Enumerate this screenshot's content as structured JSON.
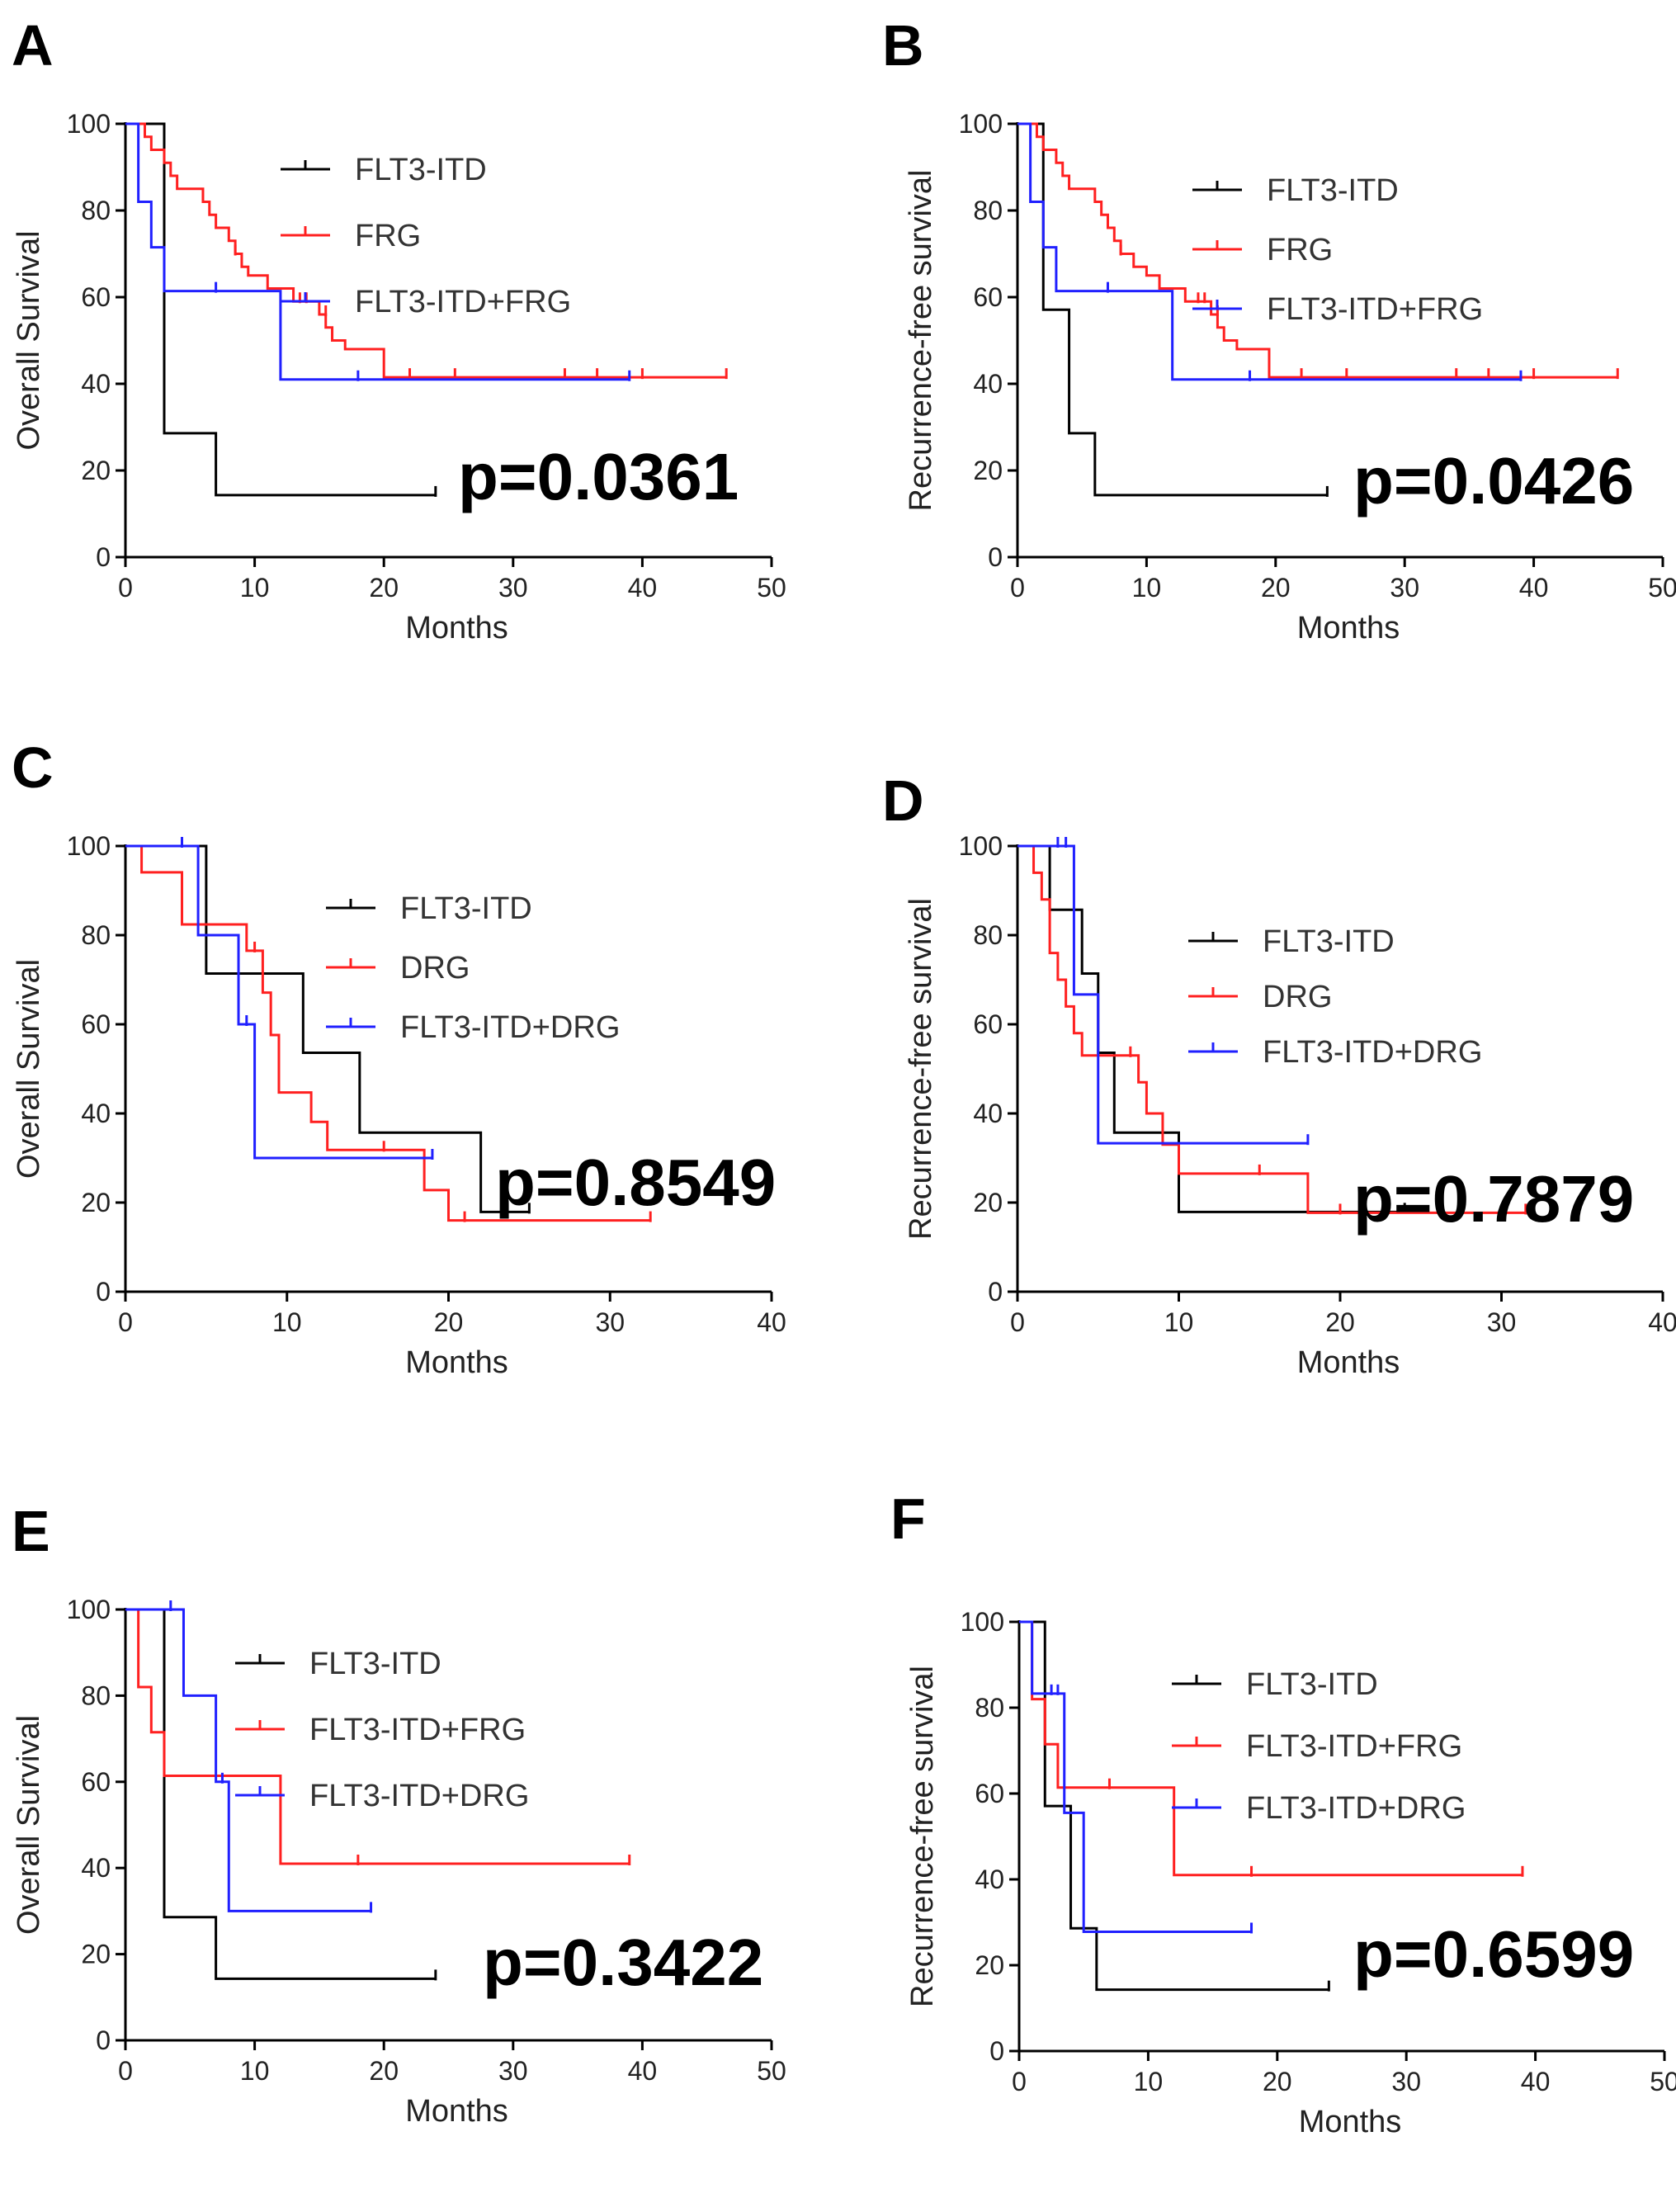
{
  "colors": {
    "black": "#000000",
    "red": "#ff2020",
    "blue": "#2020ff",
    "lightblue": "#8080ff"
  },
  "chart_data": [
    {
      "type": "line",
      "label": "A",
      "ylabel": "Overall Survival",
      "xlabel": "Months",
      "xlim": [
        0,
        50
      ],
      "ylim": [
        0,
        100
      ],
      "xticks": [
        0,
        10,
        20,
        30,
        40,
        50
      ],
      "yticks": [
        0,
        20,
        40,
        60,
        80,
        100
      ],
      "pvalue": "p=0.0361",
      "series": [
        {
          "name": "FLT3-ITD",
          "color": "#000000",
          "steps": [
            [
              0,
              100
            ],
            [
              3,
              28.6
            ],
            [
              7,
              14.3
            ],
            [
              24,
              14.3
            ]
          ],
          "censors": [
            [
              24,
              14.3
            ]
          ]
        },
        {
          "name": "FRG",
          "color": "#ff2020",
          "steps": [
            [
              0,
              100
            ],
            [
              1.5,
              97
            ],
            [
              2,
              94
            ],
            [
              3,
              91
            ],
            [
              3.5,
              88
            ],
            [
              4,
              85
            ],
            [
              6,
              82
            ],
            [
              6.5,
              79
            ],
            [
              7,
              76
            ],
            [
              8,
              73
            ],
            [
              8.5,
              70
            ],
            [
              9,
              67
            ],
            [
              9.5,
              65
            ],
            [
              11,
              62
            ],
            [
              13,
              59
            ],
            [
              15,
              56
            ],
            [
              15.5,
              53
            ],
            [
              16,
              50
            ],
            [
              17,
              48
            ],
            [
              20,
              41.5
            ],
            [
              46.5,
              41.5
            ]
          ],
          "censors": [
            [
              8.5,
              70
            ],
            [
              13.5,
              59
            ],
            [
              14,
              59
            ],
            [
              15.5,
              56
            ],
            [
              22,
              41.5
            ],
            [
              25.5,
              41.5
            ],
            [
              34,
              41.5
            ],
            [
              36.5,
              41.5
            ],
            [
              40,
              41.5
            ],
            [
              46.5,
              41.5
            ]
          ]
        },
        {
          "name": "FLT3-ITD+FRG",
          "color": "#2020ff",
          "steps": [
            [
              0,
              100
            ],
            [
              1,
              82
            ],
            [
              2,
              71.5
            ],
            [
              3,
              61.4
            ],
            [
              12,
              41
            ],
            [
              39,
              41
            ]
          ],
          "censors": [
            [
              7,
              61.4
            ],
            [
              18,
              41
            ],
            [
              39,
              41
            ]
          ]
        }
      ]
    },
    {
      "type": "line",
      "label": "B",
      "ylabel": "Recurrence-free survival",
      "xlabel": "Months",
      "xlim": [
        0,
        50
      ],
      "ylim": [
        0,
        100
      ],
      "xticks": [
        0,
        10,
        20,
        30,
        40,
        50
      ],
      "yticks": [
        0,
        20,
        40,
        60,
        80,
        100
      ],
      "pvalue": "p=0.0426",
      "series": [
        {
          "name": "FLT3-ITD",
          "color": "#000000",
          "steps": [
            [
              0,
              100
            ],
            [
              2,
              57.1
            ],
            [
              4,
              28.6
            ],
            [
              6,
              14.3
            ],
            [
              24,
              14.3
            ]
          ],
          "censors": [
            [
              24,
              14.3
            ]
          ]
        },
        {
          "name": "FRG",
          "color": "#ff2020",
          "steps": [
            [
              0,
              100
            ],
            [
              1.5,
              97
            ],
            [
              2,
              94
            ],
            [
              3,
              91
            ],
            [
              3.5,
              88
            ],
            [
              4,
              85
            ],
            [
              6,
              82
            ],
            [
              6.5,
              79
            ],
            [
              7,
              76
            ],
            [
              7.5,
              73
            ],
            [
              8,
              70
            ],
            [
              9,
              67
            ],
            [
              10,
              65
            ],
            [
              11,
              62
            ],
            [
              13,
              59
            ],
            [
              15,
              56
            ],
            [
              15.5,
              53
            ],
            [
              16,
              50
            ],
            [
              17,
              48
            ],
            [
              19.5,
              41.5
            ],
            [
              46.5,
              41.5
            ]
          ],
          "censors": [
            [
              8,
              70
            ],
            [
              14,
              59
            ],
            [
              14.5,
              59
            ],
            [
              15.5,
              56
            ],
            [
              22,
              41.5
            ],
            [
              25.5,
              41.5
            ],
            [
              34,
              41.5
            ],
            [
              36.5,
              41.5
            ],
            [
              40,
              41.5
            ],
            [
              46.5,
              41.5
            ]
          ]
        },
        {
          "name": "FLT3-ITD+FRG",
          "color": "#2020ff",
          "steps": [
            [
              0,
              100
            ],
            [
              1,
              82
            ],
            [
              2,
              71.5
            ],
            [
              3,
              61.4
            ],
            [
              12,
              41
            ],
            [
              39,
              41
            ]
          ],
          "censors": [
            [
              7,
              61.4
            ],
            [
              18,
              41
            ],
            [
              39,
              41
            ]
          ]
        }
      ]
    },
    {
      "type": "line",
      "label": "C",
      "ylabel": "Overall Survival",
      "xlabel": "Months",
      "xlim": [
        0,
        40
      ],
      "ylim": [
        0,
        100
      ],
      "xticks": [
        0,
        10,
        20,
        30,
        40
      ],
      "yticks": [
        0,
        20,
        40,
        60,
        80,
        100
      ],
      "pvalue": "p=0.8549",
      "series": [
        {
          "name": "FLT3-ITD",
          "color": "#000000",
          "steps": [
            [
              0,
              100
            ],
            [
              5,
              71.4
            ],
            [
              11,
              53.6
            ],
            [
              14.5,
              35.7
            ],
            [
              22,
              17.9
            ],
            [
              25,
              17.9
            ]
          ],
          "censors": [
            [
              25,
              17.9
            ]
          ]
        },
        {
          "name": "DRG",
          "color": "#ff2020",
          "steps": [
            [
              0,
              100
            ],
            [
              1,
              94.1
            ],
            [
              3.5,
              82.4
            ],
            [
              4.5,
              82.4
            ],
            [
              7.5,
              76.5
            ],
            [
              8.5,
              67.1
            ],
            [
              9,
              57.6
            ],
            [
              9.5,
              44.7
            ],
            [
              11.5,
              38.1
            ],
            [
              12.5,
              31.8
            ],
            [
              18.5,
              22.8
            ],
            [
              20,
              16
            ],
            [
              32.5,
              16
            ]
          ],
          "censors": [
            [
              8,
              76.5
            ],
            [
              16,
              31.8
            ],
            [
              21,
              16
            ],
            [
              32.5,
              16
            ]
          ]
        },
        {
          "name": "FLT3-ITD+DRG",
          "color": "#2020ff",
          "steps": [
            [
              0,
              100
            ],
            [
              4.5,
              80
            ],
            [
              7,
              60
            ],
            [
              8,
              30
            ],
            [
              19,
              30
            ]
          ],
          "censors": [
            [
              3.5,
              100
            ],
            [
              7.5,
              60
            ],
            [
              19,
              30
            ]
          ]
        }
      ]
    },
    {
      "type": "line",
      "label": "D",
      "ylabel": "Recurrence-free survival",
      "xlabel": "Months",
      "xlim": [
        0,
        40
      ],
      "ylim": [
        0,
        100
      ],
      "xticks": [
        0,
        10,
        20,
        30,
        40
      ],
      "yticks": [
        0,
        20,
        40,
        60,
        80,
        100
      ],
      "pvalue": "p=0.7879",
      "series": [
        {
          "name": "FLT3-ITD",
          "color": "#000000",
          "steps": [
            [
              0,
              100
            ],
            [
              2,
              85.7
            ],
            [
              4,
              71.4
            ],
            [
              5,
              53.6
            ],
            [
              6,
              35.7
            ],
            [
              10,
              17.9
            ],
            [
              24,
              17.9
            ]
          ],
          "censors": [
            [
              24,
              17.9
            ]
          ]
        },
        {
          "name": "DRG",
          "color": "#ff2020",
          "steps": [
            [
              0,
              100
            ],
            [
              1,
              94
            ],
            [
              1.5,
              88
            ],
            [
              2,
              76
            ],
            [
              2.5,
              70
            ],
            [
              3,
              64
            ],
            [
              3.5,
              58
            ],
            [
              4,
              53
            ],
            [
              7.5,
              47
            ],
            [
              8,
              40
            ],
            [
              9,
              33
            ],
            [
              10,
              26.5
            ],
            [
              18,
              17.7
            ],
            [
              31.5,
              17.7
            ]
          ],
          "censors": [
            [
              7,
              53
            ],
            [
              15,
              26.5
            ],
            [
              20,
              17.7
            ],
            [
              31.5,
              17.7
            ]
          ]
        },
        {
          "name": "FLT3-ITD+DRG",
          "color": "#2020ff",
          "steps": [
            [
              0,
              100
            ],
            [
              3.5,
              66.7
            ],
            [
              5,
              33.3
            ],
            [
              18,
              33.3
            ]
          ],
          "censors": [
            [
              2.5,
              100
            ],
            [
              3,
              100
            ],
            [
              18,
              33.3
            ]
          ]
        }
      ]
    },
    {
      "type": "line",
      "label": "E",
      "ylabel": "Overall Survival",
      "xlabel": "Months",
      "xlim": [
        0,
        50
      ],
      "ylim": [
        0,
        100
      ],
      "xticks": [
        0,
        10,
        20,
        30,
        40,
        50
      ],
      "yticks": [
        0,
        20,
        40,
        60,
        80,
        100
      ],
      "pvalue": "p=0.3422",
      "series": [
        {
          "name": "FLT3-ITD",
          "color": "#000000",
          "steps": [
            [
              0,
              100
            ],
            [
              3,
              28.6
            ],
            [
              7,
              14.3
            ],
            [
              24,
              14.3
            ]
          ],
          "censors": [
            [
              24,
              14.3
            ]
          ]
        },
        {
          "name": "FLT3-ITD+FRG",
          "color": "#ff2020",
          "steps": [
            [
              0,
              100
            ],
            [
              1,
              82
            ],
            [
              2,
              71.5
            ],
            [
              3,
              61.4
            ],
            [
              12,
              41
            ],
            [
              39,
              41
            ]
          ],
          "censors": [
            [
              18,
              41
            ],
            [
              39,
              41
            ]
          ]
        },
        {
          "name": "FLT3-ITD+DRG",
          "color": "#2020ff",
          "steps": [
            [
              0,
              100
            ],
            [
              4.5,
              80
            ],
            [
              7,
              60
            ],
            [
              8,
              30
            ],
            [
              19,
              30
            ]
          ],
          "censors": [
            [
              3.5,
              100
            ],
            [
              7.5,
              60
            ],
            [
              19,
              30
            ]
          ]
        }
      ]
    },
    {
      "type": "line",
      "label": "F",
      "ylabel": "Recurrence-free survival",
      "xlabel": "Months",
      "xlim": [
        0,
        50
      ],
      "ylim": [
        0,
        100
      ],
      "xticks": [
        0,
        10,
        20,
        30,
        40,
        50
      ],
      "yticks": [
        0,
        20,
        40,
        60,
        80,
        100
      ],
      "pvalue": "p=0.6599",
      "series": [
        {
          "name": "FLT3-ITD",
          "color": "#000000",
          "steps": [
            [
              0,
              100
            ],
            [
              2,
              57.1
            ],
            [
              4,
              28.6
            ],
            [
              6,
              14.3
            ],
            [
              24,
              14.3
            ]
          ],
          "censors": [
            [
              24,
              14.3
            ]
          ]
        },
        {
          "name": "FLT3-ITD+FRG",
          "color": "#ff2020",
          "steps": [
            [
              0,
              100
            ],
            [
              1,
              82
            ],
            [
              2,
              71.5
            ],
            [
              3,
              61.4
            ],
            [
              12,
              41
            ],
            [
              39,
              41
            ]
          ],
          "censors": [
            [
              7,
              61.4
            ],
            [
              18,
              41
            ],
            [
              39,
              41
            ]
          ]
        },
        {
          "name": "FLT3-ITD+DRG",
          "color": "#2020ff",
          "steps": [
            [
              0,
              100
            ],
            [
              1,
              83.3
            ],
            [
              3.5,
              55.5
            ],
            [
              5,
              27.8
            ],
            [
              18,
              27.8
            ]
          ],
          "censors": [
            [
              2.5,
              83.3
            ],
            [
              3,
              83.3
            ],
            [
              18,
              27.8
            ]
          ]
        }
      ]
    }
  ]
}
